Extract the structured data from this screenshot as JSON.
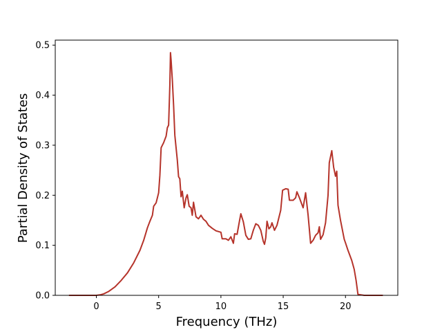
{
  "chart_data": {
    "type": "line",
    "title": "",
    "xlabel": "Frequency (THz)",
    "ylabel": "Partial Density of States",
    "xlim": [
      -3.3,
      24.2
    ],
    "ylim": [
      0.0,
      0.51
    ],
    "x_ticks": [
      0,
      5,
      10,
      15,
      20
    ],
    "x_tick_labels": [
      "0",
      "5",
      "10",
      "15",
      "20"
    ],
    "y_ticks": [
      0.0,
      0.1,
      0.2,
      0.3,
      0.4,
      0.5
    ],
    "y_tick_labels": [
      "0.0",
      "0.1",
      "0.2",
      "0.3",
      "0.4",
      "0.5"
    ],
    "grid": false,
    "legend": "none",
    "series": [
      {
        "color": "#b5332a",
        "points": [
          [
            -2.2,
            0.0
          ],
          [
            -1.0,
            0.0
          ],
          [
            0.0,
            0.0
          ],
          [
            0.3,
            0.001
          ],
          [
            0.6,
            0.003
          ],
          [
            1.0,
            0.008
          ],
          [
            1.5,
            0.017
          ],
          [
            2.0,
            0.03
          ],
          [
            2.5,
            0.045
          ],
          [
            3.0,
            0.065
          ],
          [
            3.5,
            0.09
          ],
          [
            3.8,
            0.11
          ],
          [
            4.1,
            0.135
          ],
          [
            4.3,
            0.148
          ],
          [
            4.5,
            0.16
          ],
          [
            4.6,
            0.178
          ],
          [
            4.8,
            0.185
          ],
          [
            5.0,
            0.205
          ],
          [
            5.1,
            0.24
          ],
          [
            5.2,
            0.295
          ],
          [
            5.4,
            0.305
          ],
          [
            5.6,
            0.318
          ],
          [
            5.7,
            0.335
          ],
          [
            5.8,
            0.34
          ],
          [
            5.9,
            0.42
          ],
          [
            5.95,
            0.485
          ],
          [
            6.0,
            0.47
          ],
          [
            6.1,
            0.43
          ],
          [
            6.2,
            0.38
          ],
          [
            6.3,
            0.32
          ],
          [
            6.5,
            0.27
          ],
          [
            6.6,
            0.237
          ],
          [
            6.7,
            0.233
          ],
          [
            6.8,
            0.197
          ],
          [
            6.9,
            0.208
          ],
          [
            7.05,
            0.175
          ],
          [
            7.2,
            0.195
          ],
          [
            7.3,
            0.201
          ],
          [
            7.45,
            0.178
          ],
          [
            7.6,
            0.175
          ],
          [
            7.7,
            0.16
          ],
          [
            7.8,
            0.186
          ],
          [
            8.0,
            0.157
          ],
          [
            8.2,
            0.153
          ],
          [
            8.4,
            0.16
          ],
          [
            8.6,
            0.152
          ],
          [
            8.8,
            0.148
          ],
          [
            9.0,
            0.14
          ],
          [
            9.3,
            0.134
          ],
          [
            9.6,
            0.129
          ],
          [
            10.0,
            0.126
          ],
          [
            10.1,
            0.113
          ],
          [
            10.4,
            0.113
          ],
          [
            10.6,
            0.11
          ],
          [
            10.8,
            0.117
          ],
          [
            11.0,
            0.104
          ],
          [
            11.1,
            0.123
          ],
          [
            11.3,
            0.122
          ],
          [
            11.5,
            0.15
          ],
          [
            11.6,
            0.163
          ],
          [
            11.8,
            0.147
          ],
          [
            12.0,
            0.12
          ],
          [
            12.2,
            0.112
          ],
          [
            12.4,
            0.113
          ],
          [
            12.6,
            0.13
          ],
          [
            12.8,
            0.143
          ],
          [
            13.0,
            0.14
          ],
          [
            13.2,
            0.13
          ],
          [
            13.4,
            0.108
          ],
          [
            13.5,
            0.102
          ],
          [
            13.6,
            0.115
          ],
          [
            13.7,
            0.148
          ],
          [
            13.85,
            0.133
          ],
          [
            14.0,
            0.137
          ],
          [
            14.1,
            0.145
          ],
          [
            14.3,
            0.13
          ],
          [
            14.5,
            0.14
          ],
          [
            14.8,
            0.17
          ],
          [
            14.95,
            0.21
          ],
          [
            15.2,
            0.213
          ],
          [
            15.4,
            0.212
          ],
          [
            15.5,
            0.19
          ],
          [
            15.8,
            0.19
          ],
          [
            16.0,
            0.195
          ],
          [
            16.1,
            0.207
          ],
          [
            16.3,
            0.195
          ],
          [
            16.6,
            0.175
          ],
          [
            16.8,
            0.205
          ],
          [
            17.0,
            0.16
          ],
          [
            17.2,
            0.104
          ],
          [
            17.4,
            0.11
          ],
          [
            17.6,
            0.12
          ],
          [
            17.8,
            0.125
          ],
          [
            17.9,
            0.137
          ],
          [
            18.0,
            0.112
          ],
          [
            18.2,
            0.121
          ],
          [
            18.4,
            0.145
          ],
          [
            18.6,
            0.2
          ],
          [
            18.7,
            0.265
          ],
          [
            18.9,
            0.289
          ],
          [
            19.05,
            0.256
          ],
          [
            19.2,
            0.238
          ],
          [
            19.3,
            0.248
          ],
          [
            19.4,
            0.18
          ],
          [
            19.6,
            0.15
          ],
          [
            19.9,
            0.112
          ],
          [
            20.0,
            0.105
          ],
          [
            20.2,
            0.09
          ],
          [
            20.5,
            0.07
          ],
          [
            20.7,
            0.052
          ],
          [
            20.85,
            0.03
          ],
          [
            21.0,
            0.002
          ],
          [
            21.5,
            0.0
          ],
          [
            23.0,
            0.0
          ]
        ]
      }
    ]
  }
}
